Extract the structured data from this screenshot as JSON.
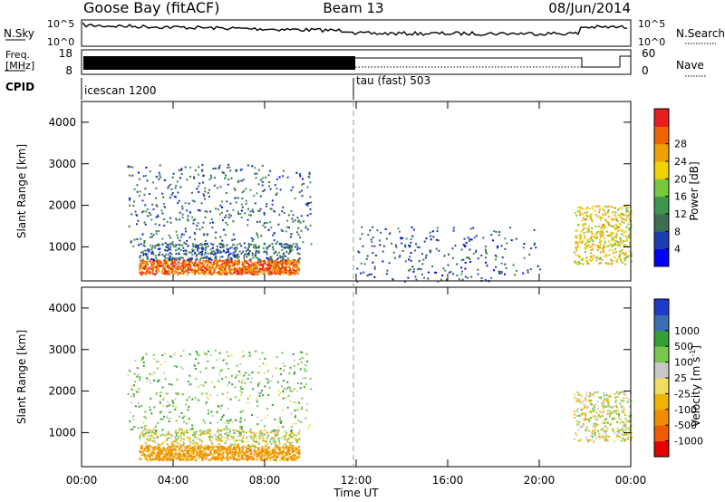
{
  "header": {
    "station": "Goose Bay (fitACF)",
    "beam": "Beam 13",
    "date": "08/Jun/2014"
  },
  "noise_panel": {
    "left_label": "N.Sky",
    "right_label": "N.Search",
    "left_ticks": [
      "10^5",
      "10^0"
    ],
    "right_ticks": [
      "10^5",
      "10^0"
    ]
  },
  "freq_panel": {
    "left_label": "Freq.",
    "unit": "[MHz]",
    "left_ticks": [
      "18",
      "8"
    ],
    "right_ticks": [
      "60",
      "0"
    ],
    "right_label": "Nave"
  },
  "cpid_panel": {
    "label": "CPID",
    "modes": [
      {
        "name": "icescan 1200",
        "start_hour": 0
      },
      {
        "name": "tau (fast) 503",
        "start_hour": 12
      }
    ]
  },
  "power_colorbar": {
    "label": "Power [dB]",
    "ticks": [
      "4",
      "8",
      "12",
      "16",
      "20",
      "24",
      "28"
    ],
    "colors": [
      "#0000ff",
      "#1e3cb4",
      "#3c6e50",
      "#3c9650",
      "#78c83c",
      "#f0d200",
      "#f0a000",
      "#f06400",
      "#e61e1e"
    ]
  },
  "velocity_colorbar": {
    "label": "Velocity [m s",
    "label_sup": "-1",
    "label_end": "]",
    "ticks": [
      "-1000",
      "-500",
      "-100",
      "-25",
      "25",
      "100",
      "500",
      "1000"
    ],
    "colors": [
      "#e60000",
      "#f05a00",
      "#f08c00",
      "#f0b400",
      "#f0dc64",
      "#c8c8c8",
      "#78c850",
      "#32a032",
      "#3c6eb4",
      "#1e3cc8"
    ]
  },
  "chart_data": [
    {
      "type": "heatmap",
      "title": "Power",
      "ylabel": "Slant Range [km]",
      "ylim": [
        180,
        4500
      ],
      "y_ticks": [
        1000,
        2000,
        3000,
        4000
      ],
      "xlim": [
        0,
        24
      ],
      "colorbar_range": [
        0,
        30
      ],
      "features": [
        {
          "desc": "ground scatter band",
          "hours": [
            2.5,
            9.5
          ],
          "range": [
            350,
            700
          ],
          "power": 24
        },
        {
          "desc": "striped scatter",
          "hours": [
            2.5,
            9.5
          ],
          "range": [
            700,
            1100
          ],
          "power": 6
        },
        {
          "desc": "arc scatter",
          "hours": [
            2,
            10
          ],
          "range": [
            1000,
            3000
          ],
          "power": 6
        },
        {
          "desc": "weak echoes",
          "hours": [
            12,
            20
          ],
          "range": [
            180,
            1500
          ],
          "power": 5
        },
        {
          "desc": "late patch",
          "hours": [
            21.5,
            24
          ],
          "range": [
            600,
            2000
          ],
          "power": 18
        }
      ]
    },
    {
      "type": "heatmap",
      "title": "Velocity",
      "ylabel": "Slant Range [km]",
      "xlabel": "Time UT",
      "ylim": [
        180,
        4500
      ],
      "y_ticks": [
        1000,
        2000,
        3000,
        4000
      ],
      "x_ticks": [
        "00:00",
        "04:00",
        "08:00",
        "12:00",
        "16:00",
        "20:00",
        "00:00"
      ],
      "xlim": [
        0,
        24
      ],
      "colorbar_range": [
        -1000,
        1000
      ],
      "features": [
        {
          "desc": "negative velocity band",
          "hours": [
            2.5,
            9.5
          ],
          "range": [
            350,
            700
          ],
          "velocity": -150
        },
        {
          "desc": "low velocity striped scatter",
          "hours": [
            2.5,
            9.5
          ],
          "range": [
            700,
            1100
          ],
          "velocity": 0
        },
        {
          "desc": "arc scatter",
          "hours": [
            2,
            10
          ],
          "range": [
            1000,
            3000
          ],
          "velocity": 80
        },
        {
          "desc": "late grey patch",
          "hours": [
            21.5,
            24
          ],
          "range": [
            800,
            2000
          ],
          "velocity": 0
        }
      ]
    }
  ]
}
